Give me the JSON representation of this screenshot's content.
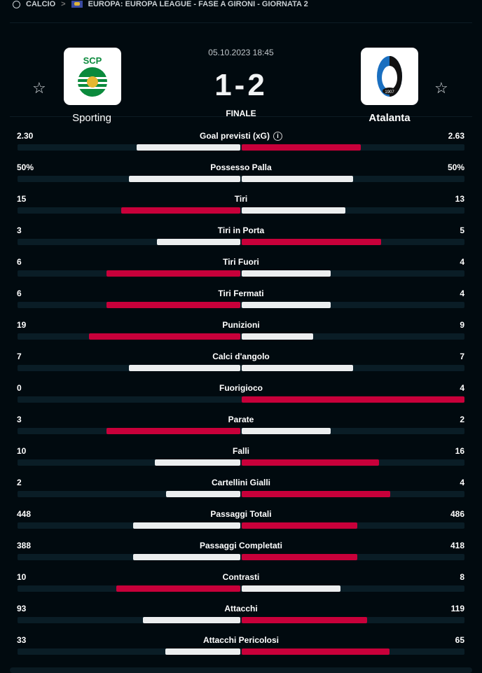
{
  "breadcrumb": {
    "sport": "CALCIO",
    "competition": "EUROPA: EUROPA LEAGUE - FASE A GIRONI - GIORNATA 2"
  },
  "match": {
    "datetime": "05.10.2023 18:45",
    "score": "1-2",
    "status": "FINALE",
    "home": {
      "name": "Sporting"
    },
    "away": {
      "name": "Atalanta"
    }
  },
  "colors": {
    "winner": "#c8003a",
    "loser": "#eceeef",
    "track": "#0a1d26"
  },
  "stats": [
    {
      "name": "Goal previsti (xG)",
      "home": "2.30",
      "away": "2.63",
      "info": true
    },
    {
      "name": "Possesso Palla",
      "home": "50%",
      "away": "50%"
    },
    {
      "name": "Tiri",
      "home": "15",
      "away": "13"
    },
    {
      "name": "Tiri in Porta",
      "home": "3",
      "away": "5"
    },
    {
      "name": "Tiri Fuori",
      "home": "6",
      "away": "4"
    },
    {
      "name": "Tiri Fermati",
      "home": "6",
      "away": "4"
    },
    {
      "name": "Punizioni",
      "home": "19",
      "away": "9"
    },
    {
      "name": "Calci d'angolo",
      "home": "7",
      "away": "7"
    },
    {
      "name": "Fuorigioco",
      "home": "0",
      "away": "4"
    },
    {
      "name": "Parate",
      "home": "3",
      "away": "2"
    },
    {
      "name": "Falli",
      "home": "10",
      "away": "16"
    },
    {
      "name": "Cartellini Gialli",
      "home": "2",
      "away": "4"
    },
    {
      "name": "Passaggi Totali",
      "home": "448",
      "away": "486"
    },
    {
      "name": "Passaggi Completati",
      "home": "388",
      "away": "418"
    },
    {
      "name": "Contrasti",
      "home": "10",
      "away": "8"
    },
    {
      "name": "Attacchi",
      "home": "93",
      "away": "119"
    },
    {
      "name": "Attacchi Pericolosi",
      "home": "33",
      "away": "65"
    }
  ]
}
